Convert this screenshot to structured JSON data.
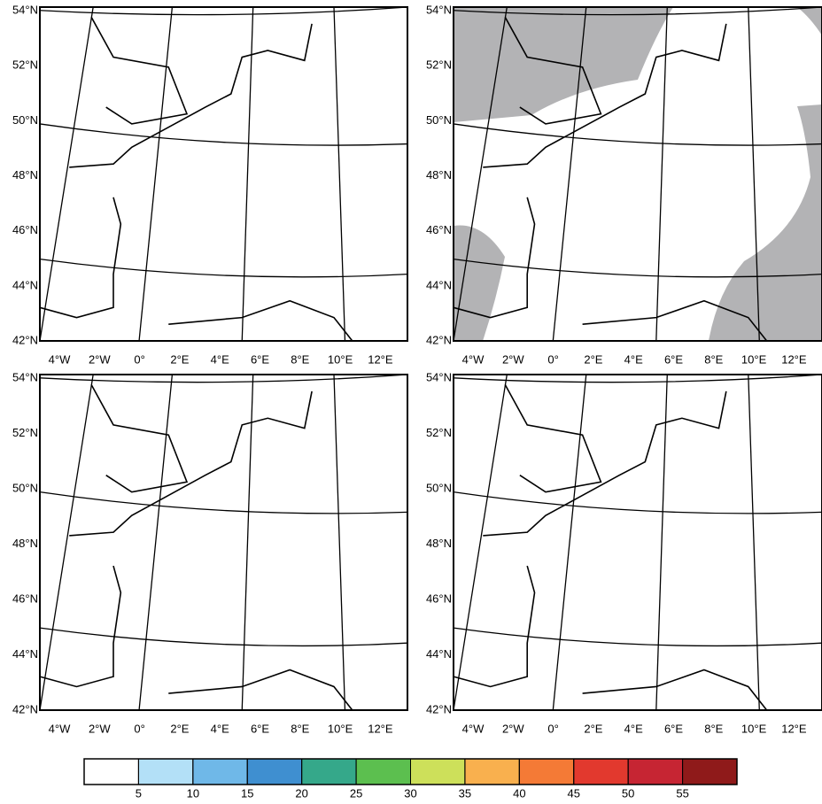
{
  "map_axes": {
    "lat_labels": [
      "54°N",
      "52°N",
      "50°N",
      "48°N",
      "46°N",
      "44°N",
      "42°N"
    ],
    "lon_labels": [
      "4°W",
      "2°W",
      "0°",
      "2°E",
      "4°E",
      "6°E",
      "8°E",
      "10°E",
      "12°E"
    ]
  },
  "colorbar": {
    "colors": [
      "#ffffff",
      "#b3e0f7",
      "#6fb8e8",
      "#3f8fd0",
      "#35a88a",
      "#5cbf4f",
      "#cde05a",
      "#f9b04e",
      "#f47a36",
      "#e2392e",
      "#c62533",
      "#8f1a1a"
    ],
    "ticks": [
      5,
      10,
      15,
      20,
      25,
      30,
      35,
      40,
      45,
      50,
      55
    ]
  }
}
